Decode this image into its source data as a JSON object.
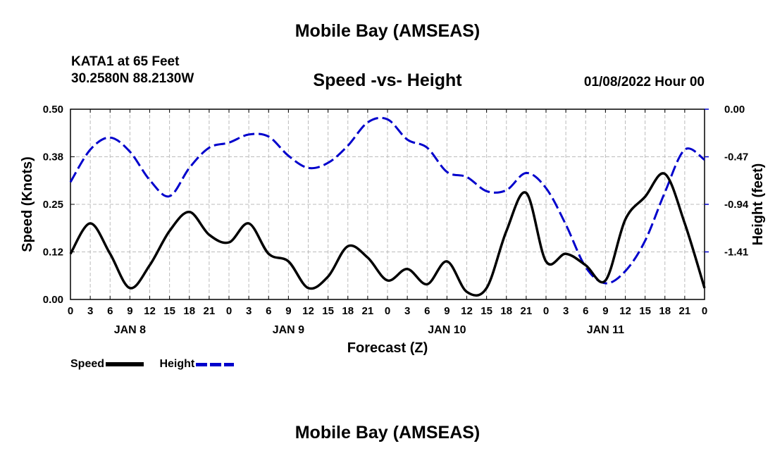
{
  "header": {
    "title": "Mobile Bay (AMSEAS)",
    "station": "KATA1 at 65 Feet",
    "coords": "30.2580N  88.2130W",
    "chart_title": "Speed -vs- Height",
    "datetime": "01/08/2022 Hour 00"
  },
  "footer": {
    "title": "Mobile Bay (AMSEAS)"
  },
  "legend": {
    "speed": "Speed",
    "height": "Height"
  },
  "colors": {
    "speed": "#000000",
    "height": "#0000cc",
    "grid": "#bbbbbb"
  },
  "chart_data": {
    "type": "line",
    "title": "Speed -vs- Height",
    "xlabel": "Forecast (Z)",
    "ylabel": "Speed (Knots)",
    "y2label": "Height (feet)",
    "xlim": [
      0,
      96
    ],
    "ylim": [
      0,
      0.5
    ],
    "y2lim": [
      -1.88,
      0
    ],
    "yticks": [
      "0.00",
      "0.12",
      "0.25",
      "0.38",
      "0.50"
    ],
    "y2ticks": [
      "-1.41",
      "-0.94",
      "-0.47",
      "0.00"
    ],
    "xticks": [
      "0",
      "3",
      "6",
      "9",
      "12",
      "15",
      "18",
      "21",
      "0",
      "3",
      "6",
      "9",
      "12",
      "15",
      "18",
      "21",
      "0",
      "3",
      "6",
      "9",
      "12",
      "15",
      "18",
      "21",
      "0",
      "3",
      "6",
      "9",
      "12",
      "15",
      "18",
      "21",
      "0"
    ],
    "days": [
      "JAN 8",
      "JAN 9",
      "JAN 10",
      "JAN 11"
    ],
    "series": [
      {
        "name": "Speed",
        "axis": "left",
        "x": [
          0,
          3,
          6,
          9,
          12,
          15,
          18,
          21,
          24,
          27,
          30,
          33,
          36,
          39,
          42,
          45,
          48,
          51,
          54,
          57,
          60,
          63,
          66,
          69,
          72,
          75,
          78,
          81,
          84,
          87,
          90,
          93,
          96
        ],
        "values": [
          0.12,
          0.2,
          0.12,
          0.03,
          0.09,
          0.18,
          0.23,
          0.17,
          0.15,
          0.2,
          0.12,
          0.1,
          0.03,
          0.06,
          0.14,
          0.11,
          0.05,
          0.08,
          0.04,
          0.1,
          0.02,
          0.03,
          0.18,
          0.28,
          0.1,
          0.12,
          0.09,
          0.05,
          0.21,
          0.27,
          0.33,
          0.2,
          0.03
        ]
      },
      {
        "name": "Height",
        "axis": "right",
        "x": [
          0,
          3,
          6,
          9,
          12,
          15,
          18,
          21,
          24,
          27,
          30,
          33,
          36,
          39,
          42,
          45,
          48,
          51,
          54,
          57,
          60,
          63,
          66,
          69,
          72,
          75,
          78,
          81,
          84,
          87,
          90,
          93,
          96
        ],
        "values": [
          -0.72,
          -0.4,
          -0.28,
          -0.42,
          -0.7,
          -0.86,
          -0.58,
          -0.38,
          -0.33,
          -0.25,
          -0.27,
          -0.46,
          -0.58,
          -0.53,
          -0.36,
          -0.13,
          -0.1,
          -0.3,
          -0.38,
          -0.62,
          -0.67,
          -0.81,
          -0.8,
          -0.63,
          -0.78,
          -1.14,
          -1.56,
          -1.72,
          -1.6,
          -1.3,
          -0.82,
          -0.4,
          -0.5
        ]
      }
    ]
  }
}
